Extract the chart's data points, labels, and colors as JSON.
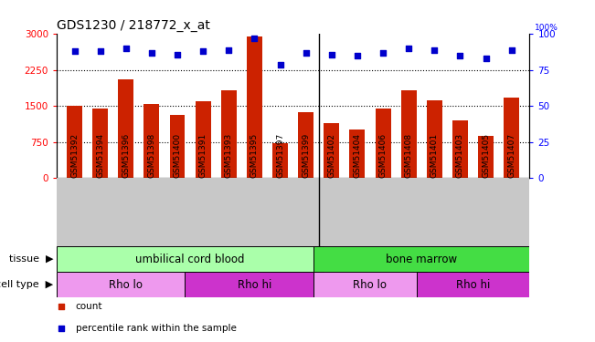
{
  "title": "GDS1230 / 218772_x_at",
  "samples": [
    "GSM51392",
    "GSM51394",
    "GSM51396",
    "GSM51398",
    "GSM51400",
    "GSM51391",
    "GSM51393",
    "GSM51395",
    "GSM51397",
    "GSM51399",
    "GSM51402",
    "GSM51404",
    "GSM51406",
    "GSM51408",
    "GSM51401",
    "GSM51403",
    "GSM51405",
    "GSM51407"
  ],
  "counts": [
    1500,
    1450,
    2050,
    1540,
    1320,
    1600,
    1820,
    2950,
    730,
    1380,
    1150,
    1000,
    1450,
    1820,
    1620,
    1200,
    870,
    1680
  ],
  "percentiles": [
    88,
    88,
    90,
    87,
    86,
    88,
    89,
    97,
    79,
    87,
    86,
    85,
    87,
    90,
    89,
    85,
    83,
    89
  ],
  "ylim_left": [
    0,
    3000
  ],
  "ylim_right": [
    0,
    100
  ],
  "yticks_left": [
    0,
    750,
    1500,
    2250,
    3000
  ],
  "yticks_right": [
    0,
    25,
    50,
    75,
    100
  ],
  "bar_color": "#cc2200",
  "scatter_color": "#0000cc",
  "plot_bg_color": "#ffffff",
  "xtick_bg_color": "#c8c8c8",
  "tissue_groups": [
    {
      "label": "umbilical cord blood",
      "start": 0,
      "end": 10,
      "color": "#aaffaa"
    },
    {
      "label": "bone marrow",
      "start": 10,
      "end": 18,
      "color": "#44dd44"
    }
  ],
  "celltype_groups": [
    {
      "label": "Rho lo",
      "start": 0,
      "end": 5,
      "color": "#ee99ee"
    },
    {
      "label": "Rho hi",
      "start": 5,
      "end": 10,
      "color": "#cc33cc"
    },
    {
      "label": "Rho lo",
      "start": 10,
      "end": 14,
      "color": "#ee99ee"
    },
    {
      "label": "Rho hi",
      "start": 14,
      "end": 18,
      "color": "#cc33cc"
    }
  ],
  "legend_items": [
    {
      "label": "count",
      "color": "#cc2200"
    },
    {
      "label": "percentile rank within the sample",
      "color": "#0000cc"
    }
  ],
  "title_fontsize": 10,
  "tick_fontsize": 6.5,
  "annot_fontsize": 8,
  "tissue_fontsize": 8.5,
  "celltype_fontsize": 8.5,
  "legend_fontsize": 7.5
}
